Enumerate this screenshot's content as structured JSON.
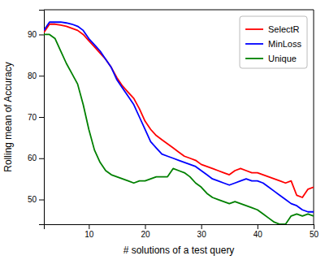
{
  "chart_data": {
    "type": "line",
    "xlabel": "# solutions of a test query",
    "ylabel": "Rolling mean of Accuracy",
    "x": [
      2,
      3,
      4,
      5,
      6,
      7,
      8,
      9,
      10,
      11,
      12,
      13,
      14,
      15,
      16,
      17,
      18,
      19,
      20,
      21,
      22,
      23,
      24,
      25,
      26,
      27,
      28,
      29,
      30,
      31,
      32,
      33,
      34,
      35,
      36,
      37,
      38,
      39,
      40,
      41,
      42,
      43,
      44,
      45,
      46,
      47,
      48,
      49,
      50
    ],
    "series": [
      {
        "name": "SelectR",
        "color": "#ff0000",
        "values": [
          90.5,
          92.5,
          92.5,
          92.3,
          92.0,
          91.5,
          91.0,
          90.0,
          88.5,
          87.0,
          85.5,
          84.0,
          82.0,
          79.5,
          77.5,
          76.0,
          74.5,
          72.0,
          69.0,
          67.0,
          65.5,
          64.5,
          63.5,
          62.5,
          61.5,
          60.5,
          60.0,
          59.5,
          58.5,
          58.0,
          57.5,
          57.0,
          56.5,
          56.0,
          57.0,
          57.5,
          57.0,
          56.5,
          56.5,
          56.0,
          55.5,
          55.0,
          54.5,
          54.0,
          54.5,
          51.0,
          50.5,
          52.5,
          53.0
        ]
      },
      {
        "name": "MinLoss",
        "color": "#0000ff",
        "values": [
          91.0,
          93.0,
          93.0,
          93.0,
          92.8,
          92.5,
          92.0,
          91.0,
          89.0,
          87.5,
          86.0,
          84.0,
          82.0,
          79.0,
          77.0,
          75.0,
          73.0,
          70.0,
          67.0,
          64.0,
          62.5,
          61.0,
          60.5,
          60.0,
          59.5,
          59.0,
          58.5,
          58.0,
          57.0,
          56.0,
          55.0,
          54.5,
          54.0,
          53.5,
          54.0,
          54.5,
          55.0,
          54.5,
          54.5,
          54.0,
          53.0,
          52.0,
          51.0,
          50.0,
          49.0,
          48.5,
          47.5,
          47.0,
          47.0
        ]
      },
      {
        "name": "Unique",
        "color": "#008000",
        "values": [
          90.0,
          90.0,
          89.0,
          86.0,
          83.0,
          80.5,
          78.0,
          73.0,
          67.0,
          62.0,
          59.0,
          57.0,
          56.0,
          55.5,
          55.0,
          54.5,
          54.0,
          54.5,
          54.5,
          55.0,
          55.5,
          55.5,
          55.5,
          57.5,
          57.0,
          56.5,
          55.5,
          54.0,
          53.0,
          51.5,
          50.5,
          50.0,
          49.5,
          49.0,
          49.5,
          49.0,
          48.5,
          48.0,
          47.5,
          46.5,
          45.5,
          44.5,
          44.0,
          44.0,
          46.0,
          46.5,
          46.0,
          46.5,
          46.0
        ]
      }
    ],
    "xlim": [
      2,
      50
    ],
    "ylim": [
      44,
      96
    ],
    "xticks": [
      10,
      20,
      30,
      40,
      50
    ],
    "yticks": [
      50,
      60,
      70,
      80,
      90
    ],
    "legend": "upper right",
    "grid": false
  }
}
